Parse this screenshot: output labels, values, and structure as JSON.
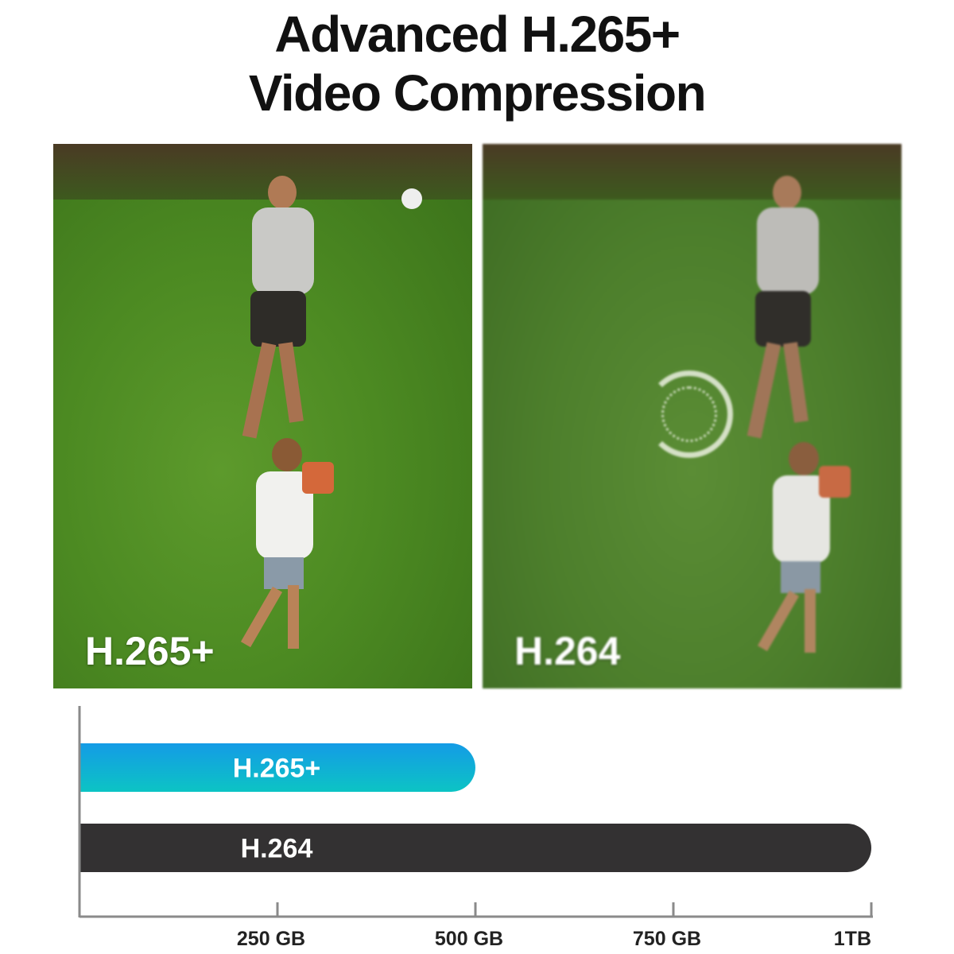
{
  "title": {
    "line1": "Advanced H.265+",
    "line2": "Video Compression"
  },
  "photos": [
    {
      "label": "H.265+"
    },
    {
      "label": "H.264",
      "overlay_icon": "loading-spinner-icon"
    }
  ],
  "chart_data": {
    "type": "bar",
    "orientation": "horizontal",
    "categories": [
      "H.265+",
      "H.264"
    ],
    "values": [
      500,
      1000
    ],
    "unit": "GB",
    "xlim": [
      0,
      1000
    ],
    "ticks": [
      250,
      500,
      750,
      1000
    ],
    "tick_labels": [
      "250 GB",
      "500 GB",
      "750 GB",
      "1TB"
    ],
    "colors": {
      "H.265+": [
        "#149be6",
        "#0cc4c4"
      ],
      "H.264": "#333132"
    },
    "grid": false
  }
}
